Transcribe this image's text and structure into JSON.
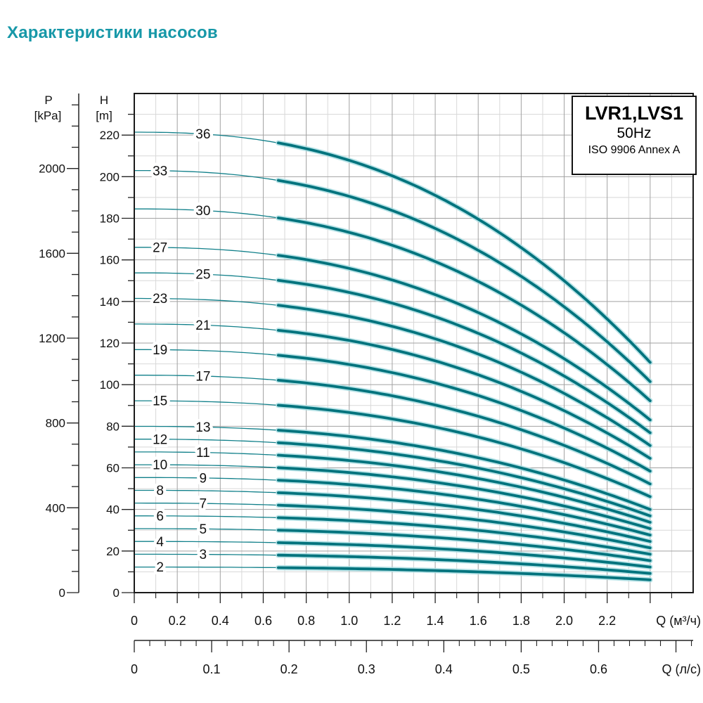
{
  "title": "Характеристики насосов",
  "legend": {
    "model": "LVR1,LVS1",
    "frequency": "50Hz",
    "standard": "ISO 9906 Annex A"
  },
  "axis_names": {
    "pressure": "P",
    "pressure_unit": "[kPa]",
    "head": "H",
    "head_unit": "[m]"
  },
  "colors": {
    "title": "#1798a8",
    "curve": "#00737d",
    "curve_thin": "#11808a",
    "curve_halo": "#aadde2",
    "grid_minor": "#d8d8d8",
    "grid_major": "#a2a2a2",
    "frame": "#1a1a1a",
    "text": "#111111"
  },
  "chart_data": {
    "type": "line",
    "title": "Характеристики насосов",
    "grid": "on",
    "legend_position": "top-right",
    "x_axis": {
      "label": "Q (м³/ч)",
      "range": [
        0,
        2.6
      ],
      "major_tick_step": 0.2,
      "minor_tick_step": 0.1,
      "tick_labels": [
        "0",
        "0.2",
        "0.4",
        "0.6",
        "0.8",
        "1.0",
        "1.2",
        "1.4",
        "1.6",
        "1.8",
        "2.0",
        "2.2"
      ],
      "tick_values": [
        0,
        0.2,
        0.4,
        0.6,
        0.8,
        1.0,
        1.2,
        1.4,
        1.6,
        1.8,
        2.0,
        2.2
      ]
    },
    "x_axis_secondary": {
      "label": "Q (л/с)",
      "range": [
        0,
        0.72
      ],
      "major_tick_step": 0.1,
      "minor_tick_step": 0.02,
      "tick_labels": [
        "0",
        "0.1",
        "0.2",
        "0.3",
        "0.4",
        "0.5",
        "0.6"
      ],
      "tick_values": [
        0,
        0.1,
        0.2,
        0.3,
        0.4,
        0.5,
        0.6
      ],
      "m3h_per_ls": 3.6
    },
    "y_axis": {
      "label": "H [m]",
      "range": [
        0,
        240
      ],
      "major_tick_step": 20,
      "minor_tick_step": 10,
      "tick_labels": [
        "0",
        "20",
        "40",
        "60",
        "80",
        "100",
        "120",
        "140",
        "160",
        "180",
        "200",
        "220"
      ]
    },
    "y_axis_secondary": {
      "label": "P [kPa]",
      "range": [
        0,
        2360
      ],
      "major_tick_step": 400,
      "minor_tick_step": 100,
      "tick_labels": [
        "0",
        "400",
        "800",
        "1200",
        "1600",
        "2000"
      ],
      "kpa_per_m": 9.8066
    },
    "curve_model": {
      "formula": "H(Q) = h0 * (1 - drop*(Q/q_end)^exponent)",
      "drop": 0.5,
      "exponent": 2.4,
      "q_end": 2.4,
      "q_bold_start": 0.67
    },
    "q_samples": [
      0,
      0.5,
      1.0,
      1.5,
      2.0,
      2.4
    ],
    "series": [
      {
        "name": "36",
        "stages": 36,
        "h0": 221.4,
        "label_q": 0.32,
        "heads": [
          221.4,
          218.8,
          207.9,
          185.6,
          149.9,
          110.7
        ]
      },
      {
        "name": "33",
        "stages": 33,
        "h0": 202.95,
        "label_q": 0.12,
        "heads": [
          203.0,
          200.6,
          190.5,
          170.1,
          137.4,
          101.5
        ]
      },
      {
        "name": "30",
        "stages": 30,
        "h0": 184.5,
        "label_q": 0.32,
        "heads": [
          184.5,
          182.4,
          173.2,
          154.7,
          124.9,
          92.3
        ]
      },
      {
        "name": "27",
        "stages": 27,
        "h0": 166.05,
        "label_q": 0.12,
        "heads": [
          166.1,
          164.1,
          155.9,
          139.2,
          112.4,
          83.0
        ]
      },
      {
        "name": "25",
        "stages": 25,
        "h0": 153.75,
        "label_q": 0.32,
        "heads": [
          153.8,
          152.0,
          144.3,
          128.9,
          104.1,
          76.9
        ]
      },
      {
        "name": "23",
        "stages": 23,
        "h0": 141.45,
        "label_q": 0.12,
        "heads": [
          141.5,
          139.8,
          132.8,
          118.6,
          95.8,
          70.7
        ]
      },
      {
        "name": "21",
        "stages": 21,
        "h0": 129.15,
        "label_q": 0.32,
        "heads": [
          129.2,
          127.7,
          121.3,
          108.3,
          87.5,
          64.6
        ]
      },
      {
        "name": "19",
        "stages": 19,
        "h0": 116.85,
        "label_q": 0.12,
        "heads": [
          116.9,
          115.5,
          109.7,
          97.9,
          79.1,
          58.4
        ]
      },
      {
        "name": "17",
        "stages": 17,
        "h0": 104.55,
        "label_q": 0.32,
        "heads": [
          104.6,
          103.3,
          98.2,
          87.6,
          70.8,
          52.3
        ]
      },
      {
        "name": "15",
        "stages": 15,
        "h0": 92.25,
        "label_q": 0.12,
        "heads": [
          92.3,
          91.2,
          86.6,
          77.3,
          62.5,
          46.1
        ]
      },
      {
        "name": "13",
        "stages": 13,
        "h0": 79.95,
        "label_q": 0.32,
        "heads": [
          80.0,
          79.0,
          75.1,
          67.0,
          54.1,
          40.0
        ]
      },
      {
        "name": "12",
        "stages": 12,
        "h0": 73.8,
        "label_q": 0.12,
        "heads": [
          73.8,
          72.9,
          69.3,
          61.9,
          50.0,
          36.9
        ]
      },
      {
        "name": "11",
        "stages": 11,
        "h0": 67.65,
        "label_q": 0.32,
        "heads": [
          67.7,
          66.9,
          63.5,
          56.7,
          45.8,
          33.8
        ]
      },
      {
        "name": "10",
        "stages": 10,
        "h0": 61.5,
        "label_q": 0.12,
        "heads": [
          61.5,
          60.8,
          57.7,
          51.6,
          41.6,
          30.8
        ]
      },
      {
        "name": "9",
        "stages": 9,
        "h0": 55.35,
        "label_q": 0.32,
        "heads": [
          55.4,
          54.7,
          52.0,
          46.4,
          37.5,
          27.7
        ]
      },
      {
        "name": "8",
        "stages": 8,
        "h0": 49.2,
        "label_q": 0.12,
        "heads": [
          49.2,
          48.6,
          46.2,
          41.2,
          33.3,
          24.6
        ]
      },
      {
        "name": "7",
        "stages": 7,
        "h0": 43.05,
        "label_q": 0.32,
        "heads": [
          43.1,
          42.6,
          40.4,
          36.1,
          29.2,
          21.5
        ]
      },
      {
        "name": "6",
        "stages": 6,
        "h0": 36.9,
        "label_q": 0.12,
        "heads": [
          36.9,
          36.5,
          34.6,
          30.9,
          25.0,
          18.5
        ]
      },
      {
        "name": "5",
        "stages": 5,
        "h0": 30.75,
        "label_q": 0.32,
        "heads": [
          30.8,
          30.4,
          28.9,
          25.8,
          20.8,
          15.4
        ]
      },
      {
        "name": "4",
        "stages": 4,
        "h0": 24.6,
        "label_q": 0.12,
        "heads": [
          24.6,
          24.3,
          23.1,
          20.6,
          16.7,
          12.3
        ]
      },
      {
        "name": "3",
        "stages": 3,
        "h0": 18.45,
        "label_q": 0.32,
        "heads": [
          18.5,
          18.2,
          17.3,
          15.5,
          12.5,
          9.2
        ]
      },
      {
        "name": "2",
        "stages": 2,
        "h0": 12.3,
        "label_q": 0.12,
        "heads": [
          12.3,
          12.2,
          11.5,
          10.3,
          8.3,
          6.2
        ]
      }
    ]
  }
}
